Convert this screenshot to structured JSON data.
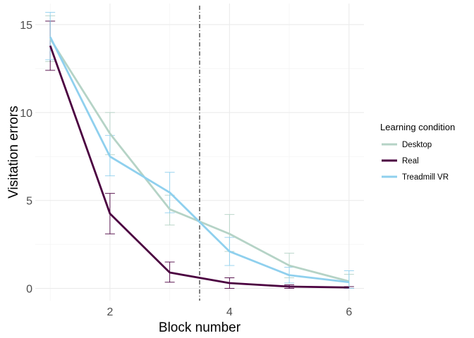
{
  "chart_data": {
    "type": "line",
    "xlabel": "Block number",
    "ylabel": "Visitation errors",
    "xlim": [
      0.75,
      6.25
    ],
    "ylim": [
      -0.7,
      16.2
    ],
    "x_ticks": [
      2,
      4,
      6
    ],
    "x_minor_ticks": [
      1,
      3,
      5
    ],
    "y_ticks": [
      0,
      5,
      10,
      15
    ],
    "y_minor_ticks": [
      2.5,
      7.5,
      12.5
    ],
    "grid": true,
    "vline": 3.5,
    "legend": {
      "title": "Learning condition",
      "position": "right"
    },
    "x": [
      1,
      2,
      3,
      4,
      5,
      6
    ],
    "series": [
      {
        "name": "Desktop",
        "color": "#b5d3c6",
        "values": [
          14.2,
          8.8,
          4.5,
          3.1,
          1.3,
          0.4
        ],
        "err_low": [
          12.9,
          7.6,
          3.6,
          2.1,
          0.6,
          0.1
        ],
        "err_high": [
          15.5,
          10.0,
          5.3,
          4.2,
          2.0,
          0.8
        ]
      },
      {
        "name": "Real",
        "color": "#4b0040",
        "values": [
          13.8,
          4.25,
          0.9,
          0.3,
          0.1,
          0.05
        ],
        "err_low": [
          12.4,
          3.1,
          0.35,
          0.0,
          0.0,
          0.0
        ],
        "err_high": [
          15.2,
          5.4,
          1.5,
          0.6,
          0.2,
          0.1
        ]
      },
      {
        "name": "Treadmill VR",
        "color": "#8fd0ee",
        "values": [
          14.3,
          7.5,
          5.45,
          2.1,
          0.75,
          0.35
        ],
        "err_low": [
          13.0,
          6.4,
          4.3,
          1.3,
          0.3,
          0.0
        ],
        "err_high": [
          15.7,
          8.7,
          6.6,
          2.9,
          1.2,
          1.0
        ]
      }
    ]
  }
}
